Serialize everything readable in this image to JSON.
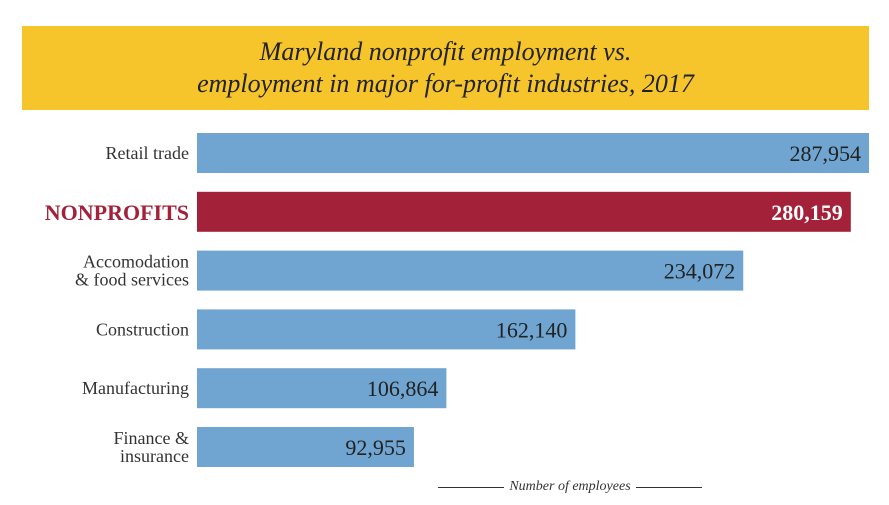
{
  "title_lines": [
    "Maryland nonprofit employment vs.",
    "employment in major for-profit industries, 2017"
  ],
  "colors": {
    "title_band": "#f6c52c",
    "bar": "#6fa5d0",
    "highlight_bar": "#a3223a",
    "highlight_label": "#a3223a",
    "text": "#222222"
  },
  "chart_data": {
    "type": "bar",
    "orientation": "horizontal",
    "title": "Maryland nonprofit employment vs. employment in major for-profit industries, 2017",
    "xlabel": "Number of employees",
    "ylabel": "",
    "categories": [
      [
        "Retail trade"
      ],
      [
        "NONPROFITS"
      ],
      [
        "Accomodation",
        "& food services"
      ],
      [
        "Construction"
      ],
      [
        "Manufacturing"
      ],
      [
        "Finance &",
        "insurance"
      ]
    ],
    "values": [
      287954,
      280159,
      234072,
      162140,
      106864,
      92955
    ],
    "value_labels": [
      "287,954",
      "280,159",
      "234,072",
      "162,140",
      "106,864",
      "92,955"
    ],
    "highlight": "NONPROFITS",
    "xlim": [
      0,
      287954
    ],
    "grid": false,
    "legend": "none"
  }
}
